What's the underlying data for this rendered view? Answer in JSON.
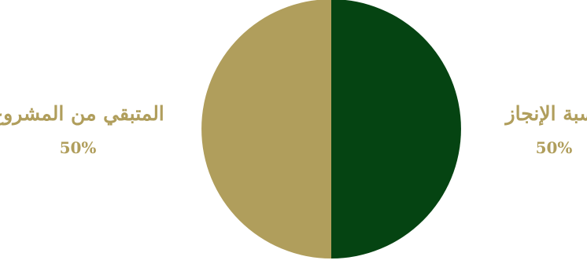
{
  "chart_data": {
    "type": "pie",
    "title": "",
    "slices": [
      {
        "label": "نسبة الإنجاز",
        "value": 50,
        "value_label": "50%",
        "color": "#054412"
      },
      {
        "label": "المتبقي من المشروع",
        "value": 50,
        "value_label": "50%",
        "color": "#b09e5c"
      }
    ],
    "label_color": "#b09e5c",
    "start": "top",
    "direction": "clockwise"
  }
}
